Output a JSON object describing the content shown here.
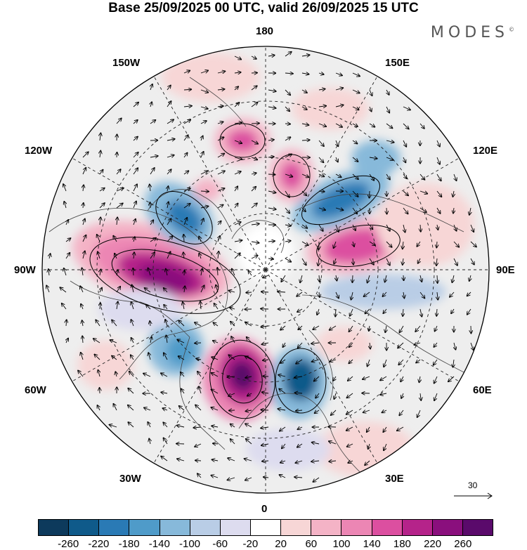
{
  "title": "Base 25/09/2025 00 UTC, valid 26/09/2025 15 UTC",
  "brand": "MODES",
  "brand_mark": "©",
  "longitude_labels": {
    "top": "180",
    "bottom": "0",
    "left": "90W",
    "right": "90E",
    "nw_upper": "150W",
    "nw_lower": "120W",
    "ne_upper": "150E",
    "ne_lower": "120E",
    "sw_upper": "60W",
    "sw_lower": "30W",
    "se_upper": "60E",
    "se_lower": "30E"
  },
  "reference_vector": {
    "label": "30"
  },
  "colorbar": {
    "ticks": [
      "-260",
      "-220",
      "-180",
      "-140",
      "-100",
      "-60",
      "-20",
      "20",
      "60",
      "100",
      "140",
      "180",
      "220",
      "260"
    ],
    "colors": [
      "#0d3a5c",
      "#0f5a8a",
      "#2a7ab5",
      "#4f9bc9",
      "#87b9da",
      "#b9cde6",
      "#dddcef",
      "#ffffff",
      "#f7d6d6",
      "#f4b3c6",
      "#ec86b4",
      "#dc4fa0",
      "#b5238a",
      "#8a0f7d",
      "#5a0a6b"
    ]
  }
}
